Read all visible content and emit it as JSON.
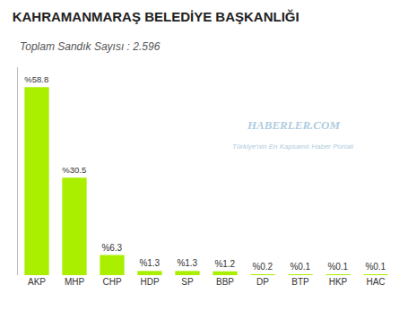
{
  "chart_data": {
    "type": "bar",
    "title": "KAHRAMANMARAŞ BELEDİYE BAŞKANLIĞI",
    "subtitle": "Toplam Sandık Sayısı : 2.596",
    "categories": [
      "AKP",
      "MHP",
      "CHP",
      "HDP",
      "SP",
      "BBP",
      "DP",
      "BTP",
      "HKP",
      "HAC"
    ],
    "values": [
      58.8,
      30.5,
      6.3,
      1.3,
      1.3,
      1.2,
      0.2,
      0.1,
      0.1,
      0.1
    ],
    "value_labels": [
      "%58.8",
      "%30.5",
      "%6.3",
      "%1.3",
      "%1.3",
      "%1.2",
      "%0.2",
      "%0.1",
      "%0.1",
      "%0.1"
    ],
    "data_labels": true,
    "color": "#aaee00",
    "ylim": [
      0,
      65
    ],
    "grid": false,
    "tick_labels": "x",
    "annotations": [
      "HABERLER.COM",
      "Türkiye'nin En Kapsamlı Haber Portali"
    ]
  }
}
